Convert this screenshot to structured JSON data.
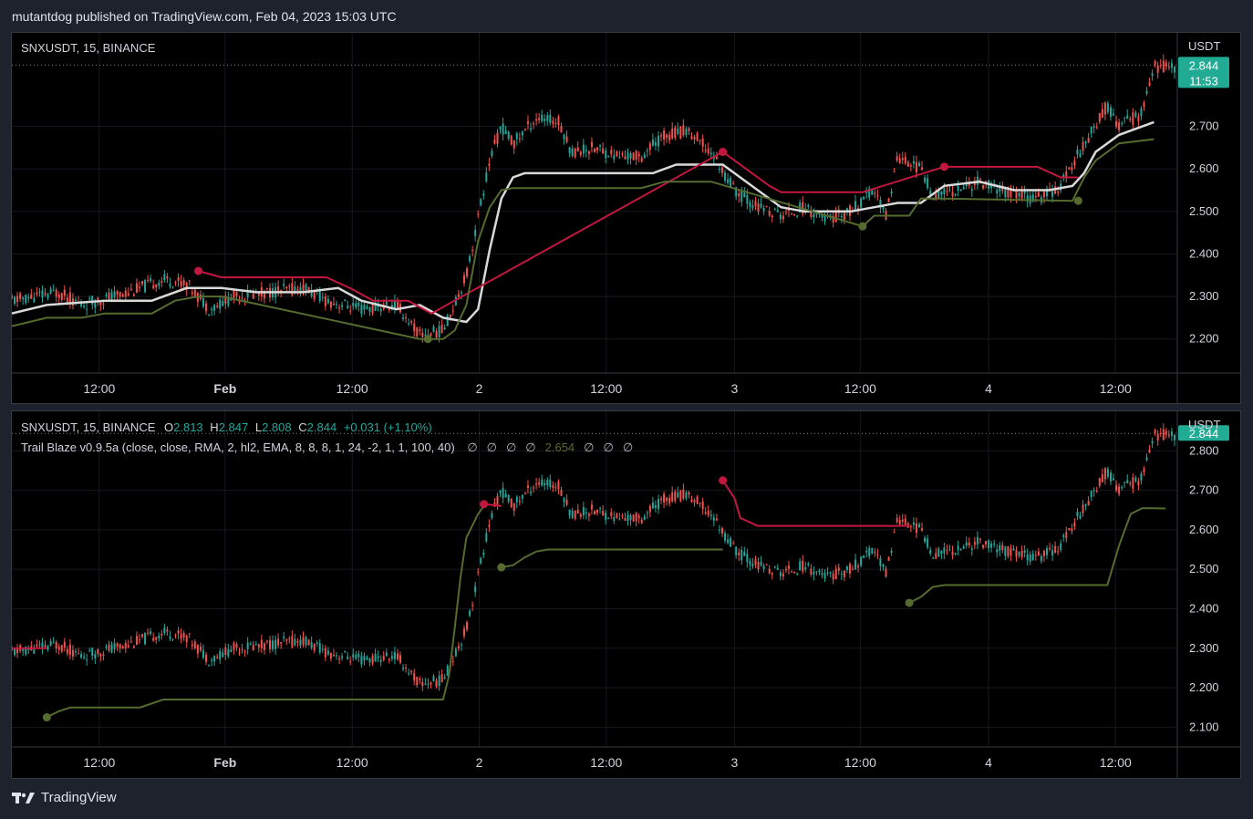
{
  "publish_info": "mutantdog published on TradingView.com, Feb 04, 2023 15:03 UTC",
  "brand": "TradingView",
  "currency": "USDT",
  "last_price": "2.844",
  "countdown": "11:53",
  "colors": {
    "up": "#26a69a",
    "down": "#ef5350",
    "white_line": "#d9d9d9",
    "red_line": "#c2183f",
    "green_line": "#556b2f",
    "label_bg": "#22ab94"
  },
  "x_ticks": [
    "12:00",
    "Feb",
    "12:00",
    "2",
    "12:00",
    "3",
    "12:00",
    "4",
    "12:00"
  ],
  "pane1": {
    "symbol": "SNXUSDT, 15, BINANCE",
    "y_ticks": [
      "2.700",
      "2.600",
      "2.500",
      "2.400",
      "2.300",
      "2.200"
    ]
  },
  "pane2": {
    "symbol": "SNXUSDT, 15, BINANCE",
    "ohlc": {
      "o_label": "O",
      "o": "2.813",
      "h_label": "H",
      "h": "2.847",
      "l_label": "L",
      "l": "2.808",
      "c_label": "C",
      "c": "2.844",
      "change": "+0.031 (+1.10%)"
    },
    "indicator": "Trail Blaze v0.9.5a (close, close, RMA, 2, hl2, EMA, 8, 8, 8, 1, 24, -2, 1, 1, 100, 40)",
    "indicator_values": [
      "∅",
      "∅",
      "∅",
      "∅",
      "2.654",
      "∅",
      "∅",
      "∅"
    ],
    "y_ticks": [
      "2.800",
      "2.700",
      "2.600",
      "2.500",
      "2.400",
      "2.300",
      "2.200",
      "2.100"
    ]
  },
  "chart_data": [
    {
      "type": "line",
      "title": "SNXUSDT, 15, BINANCE",
      "xlabel": "",
      "ylabel": "USDT",
      "x_range": [
        "Jan 31 ~08:00",
        "Feb 4 ~15:00"
      ],
      "ylim": [
        2.12,
        2.92
      ],
      "series": [
        {
          "name": "",
          "color": "white",
          "points": [
            [
              0,
              2.26
            ],
            [
              0.03,
              2.28
            ],
            [
              0.08,
              2.29
            ],
            [
              0.12,
              2.29
            ],
            [
              0.15,
              2.32
            ],
            [
              0.18,
              2.32
            ],
            [
              0.21,
              2.31
            ],
            [
              0.25,
              2.31
            ],
            [
              0.28,
              2.32
            ],
            [
              0.3,
              2.29
            ],
            [
              0.33,
              2.27
            ],
            [
              0.35,
              2.28
            ],
            [
              0.37,
              2.25
            ],
            [
              0.39,
              2.24
            ],
            [
              0.4,
              2.27
            ],
            [
              0.41,
              2.41
            ],
            [
              0.42,
              2.53
            ],
            [
              0.43,
              2.58
            ],
            [
              0.44,
              2.59
            ],
            [
              0.48,
              2.59
            ],
            [
              0.53,
              2.59
            ],
            [
              0.55,
              2.59
            ],
            [
              0.57,
              2.61
            ],
            [
              0.61,
              2.61
            ],
            [
              0.62,
              2.59
            ],
            [
              0.64,
              2.55
            ],
            [
              0.66,
              2.51
            ],
            [
              0.68,
              2.5
            ],
            [
              0.72,
              2.5
            ],
            [
              0.74,
              2.51
            ],
            [
              0.76,
              2.52
            ],
            [
              0.78,
              2.52
            ],
            [
              0.8,
              2.56
            ],
            [
              0.83,
              2.57
            ],
            [
              0.86,
              2.55
            ],
            [
              0.89,
              2.55
            ],
            [
              0.91,
              2.56
            ],
            [
              0.92,
              2.59
            ],
            [
              0.93,
              2.64
            ],
            [
              0.95,
              2.68
            ],
            [
              0.97,
              2.7
            ],
            [
              0.98,
              2.71
            ]
          ]
        },
        {
          "name": "",
          "color": "red",
          "points": [
            [
              0.16,
              2.36
            ],
            [
              0.18,
              2.345
            ],
            [
              0.27,
              2.345
            ],
            [
              0.29,
              2.32
            ],
            [
              0.31,
              2.29
            ],
            [
              0.34,
              2.29
            ],
            [
              0.36,
              2.26
            ],
            [
              0.61,
              2.64
            ],
            [
              0.63,
              2.6
            ],
            [
              0.65,
              2.56
            ],
            [
              0.66,
              2.545
            ],
            [
              0.73,
              2.545
            ],
            [
              0.8,
              2.605
            ],
            [
              0.88,
              2.605
            ],
            [
              0.9,
              2.58
            ],
            [
              0.915,
              2.58
            ]
          ]
        },
        {
          "name": "",
          "color": "green",
          "points": [
            [
              0,
              2.23
            ],
            [
              0.03,
              2.25
            ],
            [
              0.06,
              2.25
            ],
            [
              0.08,
              2.26
            ],
            [
              0.12,
              2.26
            ],
            [
              0.14,
              2.29
            ],
            [
              0.16,
              2.3
            ],
            [
              0.18,
              2.3
            ],
            [
              0.35,
              2.2
            ],
            [
              0.37,
              2.2
            ],
            [
              0.38,
              2.22
            ],
            [
              0.39,
              2.28
            ],
            [
              0.4,
              2.43
            ],
            [
              0.41,
              2.51
            ],
            [
              0.42,
              2.55
            ],
            [
              0.43,
              2.555
            ],
            [
              0.54,
              2.555
            ],
            [
              0.56,
              2.57
            ],
            [
              0.6,
              2.57
            ],
            [
              0.73,
              2.465
            ],
            [
              0.74,
              2.49
            ],
            [
              0.77,
              2.49
            ],
            [
              0.78,
              2.53
            ],
            [
              0.8,
              2.53
            ],
            [
              0.91,
              2.525
            ],
            [
              0.92,
              2.58
            ],
            [
              0.93,
              2.62
            ],
            [
              0.95,
              2.66
            ],
            [
              0.98,
              2.67
            ]
          ]
        }
      ]
    },
    {
      "type": "line",
      "title": "SNXUSDT, 15, BINANCE",
      "xlabel": "",
      "ylabel": "USDT",
      "ylim": [
        2.05,
        2.9
      ],
      "series": [
        {
          "name": "",
          "color": "red",
          "points": [
            [
              0,
              2.3
            ],
            [
              0.03,
              2.3
            ]
          ]
        },
        {
          "name": "",
          "color": "red",
          "points": [
            [
              0.405,
              2.665
            ],
            [
              0.42,
              2.66
            ]
          ]
        },
        {
          "name": "",
          "color": "red",
          "points": [
            [
              0.61,
              2.725
            ],
            [
              0.62,
              2.68
            ],
            [
              0.625,
              2.63
            ],
            [
              0.64,
              2.61
            ],
            [
              0.77,
              2.61
            ]
          ]
        },
        {
          "name": "",
          "color": "green",
          "points": [
            [
              0.03,
              2.125
            ],
            [
              0.04,
              2.14
            ],
            [
              0.05,
              2.15
            ],
            [
              0.11,
              2.15
            ],
            [
              0.13,
              2.17
            ],
            [
              0.37,
              2.17
            ],
            [
              0.375,
              2.23
            ],
            [
              0.38,
              2.35
            ],
            [
              0.385,
              2.48
            ],
            [
              0.39,
              2.58
            ],
            [
              0.4,
              2.64
            ],
            [
              0.405,
              2.66
            ]
          ]
        },
        {
          "name": "",
          "color": "green",
          "points": [
            [
              0.42,
              2.505
            ],
            [
              0.43,
              2.51
            ],
            [
              0.44,
              2.53
            ],
            [
              0.45,
              2.545
            ],
            [
              0.46,
              2.55
            ],
            [
              0.61,
              2.55
            ]
          ]
        },
        {
          "name": "",
          "color": "green",
          "points": [
            [
              0.77,
              2.415
            ],
            [
              0.78,
              2.43
            ],
            [
              0.79,
              2.455
            ],
            [
              0.8,
              2.46
            ],
            [
              0.94,
              2.46
            ],
            [
              0.95,
              2.56
            ],
            [
              0.96,
              2.64
            ],
            [
              0.97,
              2.655
            ],
            [
              0.99,
              2.654
            ]
          ]
        }
      ]
    }
  ]
}
